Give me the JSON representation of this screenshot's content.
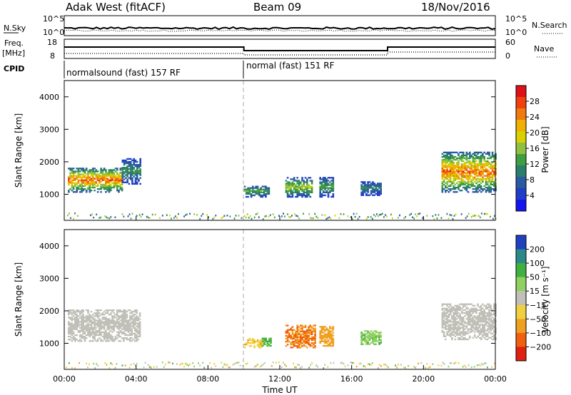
{
  "header": {
    "site": "Adak West (fitACF)",
    "beam": "Beam 09",
    "date": "18/Nov/2016"
  },
  "summary_panels": {
    "nsky_label": "N.Sky",
    "nsky_ticks": [
      "10^5",
      "10^0"
    ],
    "nsearch_label": "N.Search",
    "freq_label_1": "Freq.",
    "freq_label_2": "[MHz]",
    "freq_ticks": [
      "18",
      "8"
    ],
    "nave_ticks": [
      "60",
      "0"
    ],
    "nave_label": "Nave",
    "cpid_label": "CPID",
    "cpid_1": "normalsound (fast) 157 RF",
    "cpid_2": "normal (fast) 151 RF"
  },
  "colorbars": {
    "power": {
      "label": "Power [dB]",
      "ticks": [
        "28",
        "24",
        "20",
        "16",
        "12",
        "8",
        "4"
      ],
      "colors": [
        "#e0101a",
        "#f04010",
        "#f07a10",
        "#f0b000",
        "#d8d000",
        "#8fc040",
        "#3f9e40",
        "#2c7d6c",
        "#2a5aa0",
        "#1f3ec8",
        "#1414f0"
      ]
    },
    "velocity": {
      "label": "Velocity [m s⁻¹]",
      "ticks": [
        "200",
        "100",
        "50",
        "15",
        "−15",
        "−50",
        "−100",
        "−200"
      ],
      "colors": [
        "#2040c0",
        "#2a8a8a",
        "#40b040",
        "#90d060",
        "#c0c0b8",
        "#f0d040",
        "#f0a020",
        "#f06010",
        "#e02010"
      ]
    }
  },
  "chart_data": [
    {
      "type": "heatmap",
      "title": "Power",
      "xlabel": "Time UT",
      "ylabel": "Slant Range [km]",
      "xlim": [
        0,
        24
      ],
      "ylim": [
        200,
        4500
      ],
      "xticks": [
        "00:00",
        "04:00",
        "08:00",
        "12:00",
        "16:00",
        "20:00",
        "00:00"
      ],
      "yticks": [
        "1000",
        "2000",
        "3000",
        "4000"
      ],
      "regions": [
        {
          "t": [
            0.2,
            3.2
          ],
          "range": [
            1050,
            1800
          ],
          "peak_db": 28
        },
        {
          "t": [
            3.2,
            4.2
          ],
          "range": [
            1300,
            2100
          ],
          "peak_db": 12
        },
        {
          "t": [
            10.0,
            11.4
          ],
          "range": [
            900,
            1250
          ],
          "peak_db": 14
        },
        {
          "t": [
            12.3,
            13.8
          ],
          "range": [
            900,
            1500
          ],
          "peak_db": 18
        },
        {
          "t": [
            14.2,
            15.0
          ],
          "range": [
            900,
            1500
          ],
          "peak_db": 14
        },
        {
          "t": [
            16.5,
            17.6
          ],
          "range": [
            950,
            1400
          ],
          "peak_db": 10
        },
        {
          "t": [
            21.0,
            24.0
          ],
          "range": [
            1050,
            2300
          ],
          "peak_db": 28
        }
      ]
    },
    {
      "type": "heatmap",
      "title": "Velocity",
      "xlabel": "Time UT",
      "ylabel": "Slant Range [km]",
      "xlim": [
        0,
        24
      ],
      "ylim": [
        200,
        4500
      ],
      "xticks": [
        "00:00",
        "04:00",
        "08:00",
        "12:00",
        "16:00",
        "20:00",
        "00:00"
      ],
      "yticks": [
        "1000",
        "2000",
        "3000",
        "4000"
      ],
      "regions": [
        {
          "t": [
            0.2,
            4.2
          ],
          "range": [
            1050,
            2000
          ],
          "velocity": 0
        },
        {
          "t": [
            10.0,
            11.0
          ],
          "range": [
            850,
            1150
          ],
          "velocity": -40
        },
        {
          "t": [
            11.0,
            11.5
          ],
          "range": [
            900,
            1150
          ],
          "velocity": 60
        },
        {
          "t": [
            12.3,
            14.0
          ],
          "range": [
            850,
            1550
          ],
          "velocity": -100
        },
        {
          "t": [
            14.2,
            15.0
          ],
          "range": [
            900,
            1500
          ],
          "velocity": -80
        },
        {
          "t": [
            16.5,
            17.6
          ],
          "range": [
            950,
            1400
          ],
          "velocity": 40
        },
        {
          "t": [
            21.0,
            24.0
          ],
          "range": [
            1100,
            2200
          ],
          "velocity": 0
        }
      ]
    }
  ]
}
